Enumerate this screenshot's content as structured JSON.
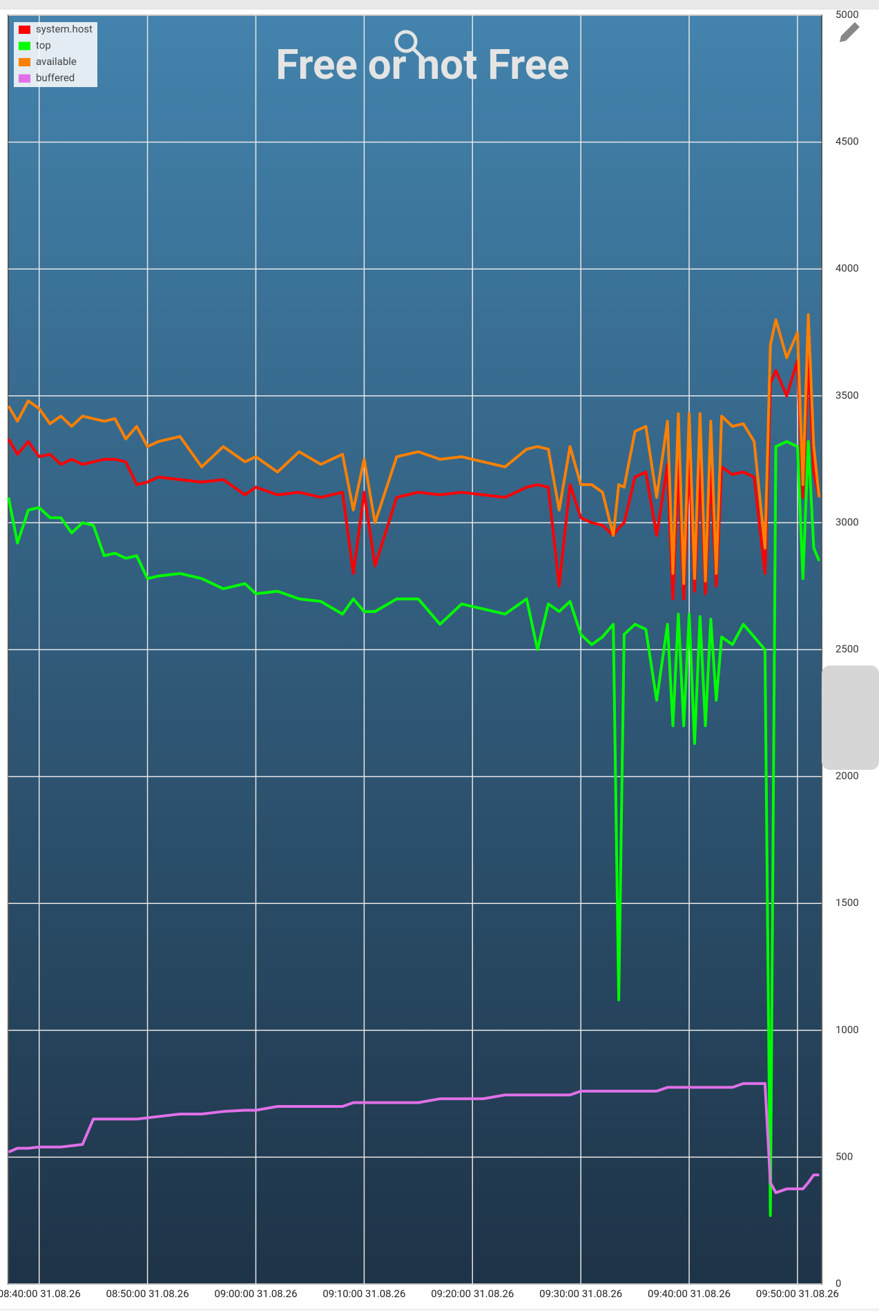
{
  "chart_data": {
    "type": "line",
    "title": "Free or not Free",
    "legend": "top-left",
    "grid": true,
    "x": [
      "08:37:10",
      "08:38:00",
      "08:39:00",
      "08:40:00",
      "08:41:00",
      "08:42:00",
      "08:43:00",
      "08:44:00",
      "08:45:00",
      "08:46:00",
      "08:47:00",
      "08:48:00",
      "08:49:00",
      "08:50:00",
      "08:51:00",
      "08:53:00",
      "08:55:00",
      "08:57:00",
      "08:59:00",
      "09:00:00",
      "09:02:00",
      "09:04:00",
      "09:06:00",
      "09:08:00",
      "09:09:00",
      "09:10:00",
      "09:11:00",
      "09:13:00",
      "09:15:00",
      "09:17:00",
      "09:19:00",
      "09:21:00",
      "09:23:00",
      "09:25:00",
      "09:26:00",
      "09:27:00",
      "09:28:00",
      "09:29:00",
      "09:30:00",
      "09:31:00",
      "09:32:00",
      "09:33:00",
      "09:33:30",
      "09:34:00",
      "09:35:00",
      "09:36:00",
      "09:37:00",
      "09:38:00",
      "09:38:30",
      "09:39:00",
      "09:39:30",
      "09:40:00",
      "09:40:30",
      "09:41:00",
      "09:41:30",
      "09:42:00",
      "09:42:30",
      "09:43:00",
      "09:44:00",
      "09:45:00",
      "09:46:00",
      "09:47:00",
      "09:47:30",
      "09:48:00",
      "09:49:00",
      "09:50:00",
      "09:50:30",
      "09:51:00",
      "09:51:30",
      "09:52:00"
    ],
    "series": [
      {
        "name": "system.host",
        "color": "#ff0000",
        "values": [
          3330,
          3270,
          3320,
          3260,
          3270,
          3230,
          3250,
          3230,
          3240,
          3250,
          3250,
          3240,
          3150,
          3160,
          3180,
          3170,
          3160,
          3170,
          3110,
          3140,
          3110,
          3120,
          3100,
          3120,
          2800,
          3120,
          2830,
          3100,
          3120,
          3110,
          3120,
          3110,
          3100,
          3140,
          3150,
          3140,
          2750,
          3150,
          3020,
          3000,
          2990,
          2950,
          2980,
          3000,
          3180,
          3200,
          2950,
          3230,
          2700,
          3250,
          2700,
          3250,
          2730,
          3240,
          2720,
          3210,
          2750,
          3220,
          3190,
          3200,
          3180,
          2800,
          3550,
          3600,
          3500,
          3640,
          3100,
          3660,
          3200,
          3100
        ]
      },
      {
        "name": "top",
        "color": "#00ff00",
        "values": [
          3100,
          2920,
          3050,
          3060,
          3020,
          3020,
          2960,
          3000,
          2990,
          2870,
          2880,
          2860,
          2870,
          2780,
          2790,
          2800,
          2780,
          2740,
          2760,
          2720,
          2730,
          2700,
          2690,
          2640,
          2700,
          2650,
          2650,
          2700,
          2700,
          2600,
          2680,
          2660,
          2640,
          2700,
          2500,
          2680,
          2650,
          2690,
          2560,
          2520,
          2550,
          2600,
          1120,
          2560,
          2600,
          2580,
          2300,
          2600,
          2200,
          2640,
          2200,
          2640,
          2130,
          2630,
          2200,
          2620,
          2300,
          2550,
          2520,
          2600,
          2550,
          2500,
          270,
          3300,
          3320,
          3300,
          2780,
          3320,
          2900,
          2850
        ]
      },
      {
        "name": "available",
        "color": "#ff8000",
        "values": [
          3460,
          3400,
          3480,
          3450,
          3390,
          3420,
          3380,
          3420,
          3410,
          3400,
          3410,
          3330,
          3380,
          3300,
          3320,
          3340,
          3220,
          3300,
          3240,
          3260,
          3200,
          3280,
          3230,
          3270,
          3050,
          3250,
          3000,
          3260,
          3280,
          3250,
          3260,
          3240,
          3220,
          3290,
          3300,
          3290,
          3050,
          3300,
          3150,
          3150,
          3120,
          2950,
          3150,
          3140,
          3360,
          3380,
          3100,
          3400,
          2800,
          3430,
          2760,
          3430,
          2780,
          3430,
          2770,
          3400,
          2800,
          3420,
          3380,
          3390,
          3320,
          2900,
          3700,
          3800,
          3650,
          3750,
          3150,
          3820,
          3300,
          3100
        ]
      },
      {
        "name": "buffered",
        "color": "#e070e8",
        "values": [
          520,
          535,
          535,
          540,
          540,
          540,
          545,
          550,
          650,
          650,
          650,
          650,
          650,
          655,
          660,
          670,
          670,
          680,
          685,
          685,
          700,
          700,
          700,
          700,
          715,
          715,
          715,
          715,
          715,
          730,
          730,
          730,
          745,
          745,
          745,
          745,
          745,
          745,
          760,
          760,
          760,
          760,
          760,
          760,
          760,
          760,
          760,
          775,
          775,
          775,
          775,
          775,
          775,
          775,
          775,
          775,
          775,
          775,
          775,
          790,
          790,
          790,
          400,
          360,
          375,
          375,
          375,
          400,
          430,
          430
        ]
      }
    ],
    "xlim": [
      "08:37:09",
      "09:52:14"
    ],
    "xticks": [
      {
        "value": "08:40:00",
        "label": "08:40:00 31.08.26"
      },
      {
        "value": "08:50:00",
        "label": "08:50:00 31.08.26"
      },
      {
        "value": "09:00:00",
        "label": "09:00:00 31.08.26"
      },
      {
        "value": "09:10:00",
        "label": "09:10:00 31.08.26"
      },
      {
        "value": "09:20:00",
        "label": "09:20:00 31.08.26"
      },
      {
        "value": "09:30:00",
        "label": "09:30:00 31.08.26"
      },
      {
        "value": "09:40:00",
        "label": "09:40:00 31.08.26"
      },
      {
        "value": "09:50:00",
        "label": "09:50:00 31.08.26"
      }
    ],
    "ylim": [
      0,
      5000
    ],
    "yticks": [
      0,
      500,
      1000,
      1500,
      2000,
      2500,
      3000,
      3500,
      4000,
      4500,
      5000
    ]
  }
}
